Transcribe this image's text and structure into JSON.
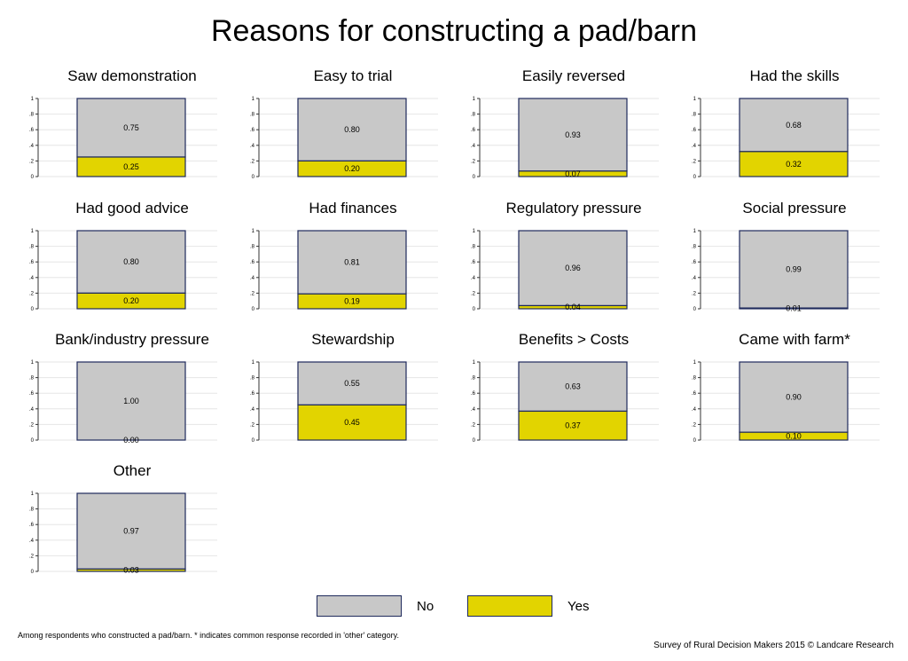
{
  "title": "Reasons for constructing a pad/barn",
  "legend": [
    {
      "label": "No",
      "color": "#c8c8c8"
    },
    {
      "label": "Yes",
      "color": "#e2d400"
    }
  ],
  "colors": {
    "no": "#c8c8c8",
    "yes": "#e2d400",
    "border": "#1f2a5c",
    "grid": "#e6e6e6"
  },
  "footnote": "Among respondents who constructed a pad/barn. * indicates common response recorded in 'other' category.",
  "credit": "Survey of Rural Decision Makers 2015 © Landcare Research",
  "chart_data": [
    {
      "type": "bar",
      "title": "Saw demonstration",
      "categories": [
        "Yes",
        "No"
      ],
      "values": [
        0.25,
        0.75
      ],
      "labels": [
        "0.25",
        "0.75"
      ],
      "ylim": [
        0,
        1
      ],
      "yticks": [
        "0",
        ".2",
        ".4",
        ".6",
        ".8",
        "1"
      ],
      "stacked": true
    },
    {
      "type": "bar",
      "title": "Easy to trial",
      "categories": [
        "Yes",
        "No"
      ],
      "values": [
        0.2,
        0.8
      ],
      "labels": [
        "0.20",
        "0.80"
      ],
      "ylim": [
        0,
        1
      ],
      "yticks": [
        "0",
        ".2",
        ".4",
        ".6",
        ".8",
        "1"
      ],
      "stacked": true
    },
    {
      "type": "bar",
      "title": "Easily reversed",
      "categories": [
        "Yes",
        "No"
      ],
      "values": [
        0.07,
        0.93
      ],
      "labels": [
        "0.07",
        "0.93"
      ],
      "ylim": [
        0,
        1
      ],
      "yticks": [
        "0",
        ".2",
        ".4",
        ".6",
        ".8",
        "1"
      ],
      "stacked": true
    },
    {
      "type": "bar",
      "title": "Had the skills",
      "categories": [
        "Yes",
        "No"
      ],
      "values": [
        0.32,
        0.68
      ],
      "labels": [
        "0.32",
        "0.68"
      ],
      "ylim": [
        0,
        1
      ],
      "yticks": [
        "0",
        ".2",
        ".4",
        ".6",
        ".8",
        "1"
      ],
      "stacked": true
    },
    {
      "type": "bar",
      "title": "Had good advice",
      "categories": [
        "Yes",
        "No"
      ],
      "values": [
        0.2,
        0.8
      ],
      "labels": [
        "0.20",
        "0.80"
      ],
      "ylim": [
        0,
        1
      ],
      "yticks": [
        "0",
        ".2",
        ".4",
        ".6",
        ".8",
        "1"
      ],
      "stacked": true
    },
    {
      "type": "bar",
      "title": "Had finances",
      "categories": [
        "Yes",
        "No"
      ],
      "values": [
        0.19,
        0.81
      ],
      "labels": [
        "0.19",
        "0.81"
      ],
      "ylim": [
        0,
        1
      ],
      "yticks": [
        "0",
        ".2",
        ".4",
        ".6",
        ".8",
        "1"
      ],
      "stacked": true
    },
    {
      "type": "bar",
      "title": "Regulatory pressure",
      "categories": [
        "Yes",
        "No"
      ],
      "values": [
        0.04,
        0.96
      ],
      "labels": [
        "0.04",
        "0.96"
      ],
      "ylim": [
        0,
        1
      ],
      "yticks": [
        "0",
        ".2",
        ".4",
        ".6",
        ".8",
        "1"
      ],
      "stacked": true
    },
    {
      "type": "bar",
      "title": "Social pressure",
      "categories": [
        "Yes",
        "No"
      ],
      "values": [
        0.01,
        0.99
      ],
      "labels": [
        "0.01",
        "0.99"
      ],
      "ylim": [
        0,
        1
      ],
      "yticks": [
        "0",
        ".2",
        ".4",
        ".6",
        ".8",
        "1"
      ],
      "stacked": true
    },
    {
      "type": "bar",
      "title": "Bank/industry pressure",
      "categories": [
        "Yes",
        "No"
      ],
      "values": [
        0.0,
        1.0
      ],
      "labels": [
        "0.00",
        "1.00"
      ],
      "ylim": [
        0,
        1
      ],
      "yticks": [
        "0",
        ".2",
        ".4",
        ".6",
        ".8",
        "1"
      ],
      "stacked": true
    },
    {
      "type": "bar",
      "title": "Stewardship",
      "categories": [
        "Yes",
        "No"
      ],
      "values": [
        0.45,
        0.55
      ],
      "labels": [
        "0.45",
        "0.55"
      ],
      "ylim": [
        0,
        1
      ],
      "yticks": [
        "0",
        ".2",
        ".4",
        ".6",
        ".8",
        "1"
      ],
      "stacked": true
    },
    {
      "type": "bar",
      "title": "Benefits > Costs",
      "categories": [
        "Yes",
        "No"
      ],
      "values": [
        0.37,
        0.63
      ],
      "labels": [
        "0.37",
        "0.63"
      ],
      "ylim": [
        0,
        1
      ],
      "yticks": [
        "0",
        ".2",
        ".4",
        ".6",
        ".8",
        "1"
      ],
      "stacked": true
    },
    {
      "type": "bar",
      "title": "Came with farm*",
      "categories": [
        "Yes",
        "No"
      ],
      "values": [
        0.1,
        0.9
      ],
      "labels": [
        "0.10",
        "0.90"
      ],
      "ylim": [
        0,
        1
      ],
      "yticks": [
        "0",
        ".2",
        ".4",
        ".6",
        ".8",
        "1"
      ],
      "stacked": true
    },
    {
      "type": "bar",
      "title": "Other",
      "categories": [
        "Yes",
        "No"
      ],
      "values": [
        0.03,
        0.97
      ],
      "labels": [
        "0.03",
        "0.97"
      ],
      "ylim": [
        0,
        1
      ],
      "yticks": [
        "0",
        ".2",
        ".4",
        ".6",
        ".8",
        "1"
      ],
      "stacked": true
    }
  ]
}
